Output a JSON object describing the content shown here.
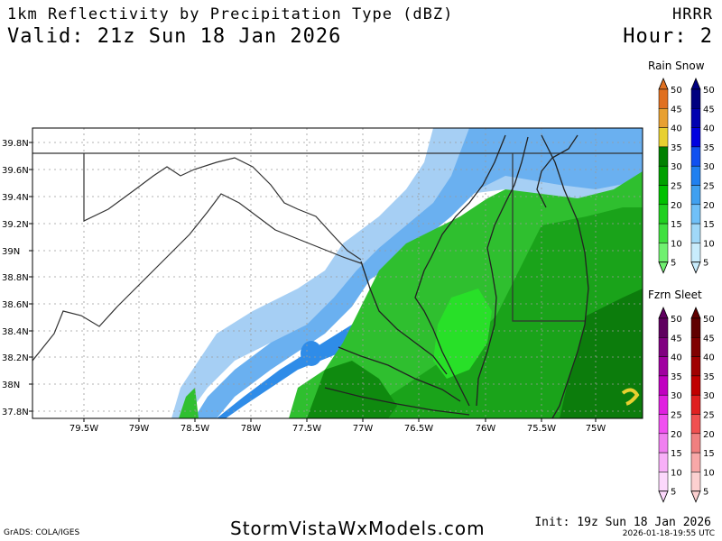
{
  "header": {
    "title": "1km Reflectivity by Precipitation Type (dBZ)",
    "valid": "Valid: 21z Sun 18 Jan 2026",
    "model": "HRRR",
    "hour": "Hour: 2"
  },
  "legends": {
    "top_label": "Rain Snow",
    "bottom_label": "Fzrn Sleet",
    "ticks": [
      "50",
      "45",
      "40",
      "35",
      "30",
      "25",
      "20",
      "15",
      "10",
      "5"
    ],
    "rain_colors": [
      "#e07020",
      "#e8a030",
      "#e8d030",
      "#008000",
      "#00a000",
      "#00c000",
      "#20d020",
      "#40e040",
      "#70f070"
    ],
    "snow_colors": [
      "#000080",
      "#0000b0",
      "#0000e0",
      "#1050f0",
      "#2080f0",
      "#40a0f0",
      "#70c0f8",
      "#a0d8f8",
      "#c8ecfc"
    ],
    "fzrn_colors": [
      "#600060",
      "#800080",
      "#a000a0",
      "#c000c0",
      "#e020e0",
      "#f050f0",
      "#f080f0",
      "#f8b0f8",
      "#fcd8fc"
    ],
    "sleet_colors": [
      "#600000",
      "#800000",
      "#a00000",
      "#c00000",
      "#e02020",
      "#f05050",
      "#f08080",
      "#f8a8a8",
      "#fcd0d0"
    ]
  },
  "map": {
    "lat_labels": [
      "39.8N",
      "39.6N",
      "39.4N",
      "39.2N",
      "39N",
      "38.8N",
      "38.6N",
      "38.4N",
      "38.2N",
      "38N",
      "37.8N"
    ],
    "lon_labels": [
      "79.5W",
      "79W",
      "78.5W",
      "78W",
      "77.5W",
      "77W",
      "76.5W",
      "76W",
      "75.5W",
      "75W"
    ],
    "colors": {
      "snow_light": "#a0ccf4",
      "snow_mid": "#6aaef0",
      "snow_dark": "#2a86e8",
      "rain_light": "#30c030",
      "rain_mid": "#18a018",
      "rain_dark": "#0a7a0a",
      "rain_bright": "#20e020"
    }
  },
  "footer": {
    "grads": "GrADS: COLA/IGES",
    "site": "StormVistaWxModels.com",
    "init": "Init: 19z Sun 18 Jan 2026",
    "stamp": "2026-01-18-19:55 UTC"
  }
}
